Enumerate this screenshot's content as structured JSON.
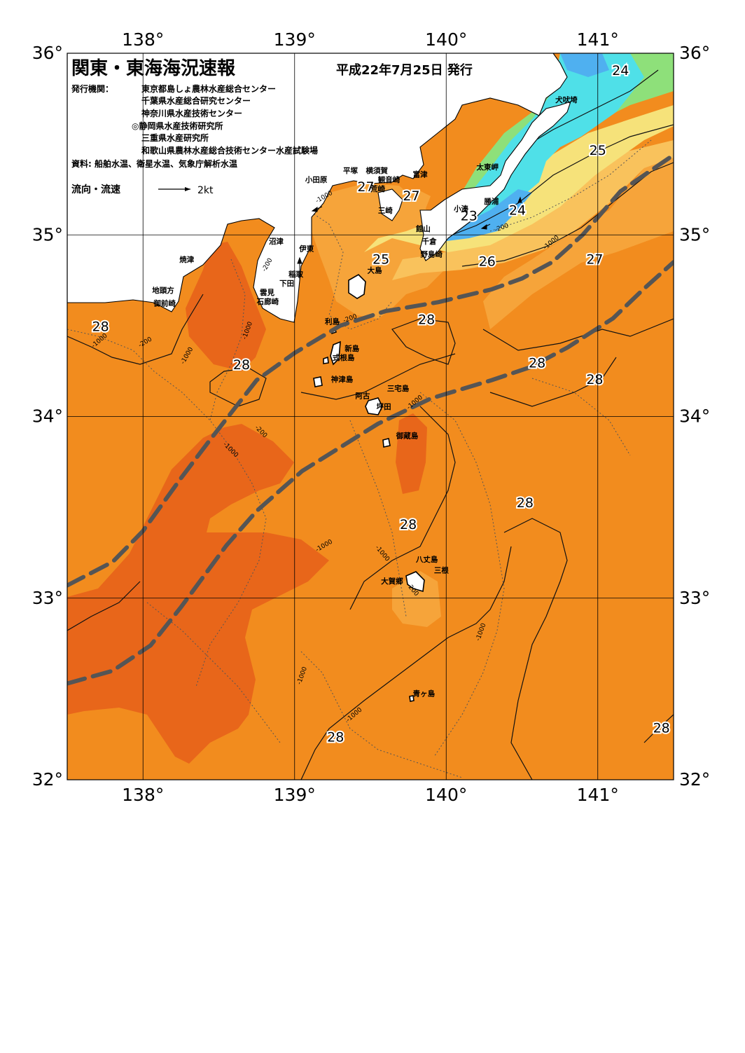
{
  "header": {
    "title": "関東・東海海況速報",
    "date": "平成22年7月25日 発行",
    "issuer_label": "発行機関：",
    "issuers": [
      "東京都島しょ農林水産総合センター",
      "千葉県水産総合研究センター",
      "神奈川県水産技術センター",
      "◎静岡県水産技術研究所",
      "三重県水産研究所",
      "和歌山県農林水産総合技術センター水産試験場"
    ],
    "sources": "資料: 船舶水温、衛星水温、気象庁解析水温",
    "current_label": "流向・流速",
    "current_scale": "2kt"
  },
  "axes": {
    "lon_labels": [
      "138°",
      "139°",
      "140°",
      "141°"
    ],
    "lat_labels": [
      "36°",
      "35°",
      "34°",
      "33°",
      "32°"
    ],
    "lon_range": [
      137.5,
      141.5
    ],
    "lat_range": [
      32,
      36
    ]
  },
  "colors": {
    "sea_28plus": "#e8661a",
    "sea_28": "#f28c1e",
    "sea_27": "#f6a43a",
    "sea_26": "#f9c25c",
    "sea_25": "#f6e27a",
    "sea_24": "#8ee07a",
    "sea_23": "#4fe0e8",
    "sea_22": "#4fb0f0",
    "land": "#ffffff",
    "kuroshio": "#555555"
  },
  "temperature_labels": [
    {
      "text": "24",
      "lon": 141.15,
      "lat": 35.88
    },
    {
      "text": "25",
      "lon": 141.0,
      "lat": 35.44
    },
    {
      "text": "27",
      "lon": 139.47,
      "lat": 35.24
    },
    {
      "text": "27",
      "lon": 139.77,
      "lat": 35.19
    },
    {
      "text": "24",
      "lon": 140.47,
      "lat": 35.11
    },
    {
      "text": "23",
      "lon": 140.15,
      "lat": 35.08
    },
    {
      "text": "25",
      "lon": 139.57,
      "lat": 34.84
    },
    {
      "text": "26",
      "lon": 140.27,
      "lat": 34.83
    },
    {
      "text": "27",
      "lon": 140.98,
      "lat": 34.84
    },
    {
      "text": "28",
      "lon": 137.72,
      "lat": 34.47
    },
    {
      "text": "28",
      "lon": 139.87,
      "lat": 34.51
    },
    {
      "text": "28",
      "lon": 138.65,
      "lat": 34.26
    },
    {
      "text": "28",
      "lon": 140.6,
      "lat": 34.27
    },
    {
      "text": "28",
      "lon": 140.98,
      "lat": 34.18
    },
    {
      "text": "28",
      "lon": 140.52,
      "lat": 33.5
    },
    {
      "text": "28",
      "lon": 139.75,
      "lat": 33.38
    },
    {
      "text": "28",
      "lon": 139.27,
      "lat": 32.21
    },
    {
      "text": "28",
      "lon": 141.42,
      "lat": 32.26
    }
  ],
  "place_labels": [
    {
      "text": "犬吠埼",
      "lon": 140.72,
      "lat": 35.73
    },
    {
      "text": "小田原",
      "lon": 139.07,
      "lat": 35.29
    },
    {
      "text": "平塚",
      "lon": 139.32,
      "lat": 35.34
    },
    {
      "text": "横須賀",
      "lon": 139.47,
      "lat": 35.34
    },
    {
      "text": "観音崎",
      "lon": 139.55,
      "lat": 35.29
    },
    {
      "text": "富津",
      "lon": 139.78,
      "lat": 35.32
    },
    {
      "text": "荒崎",
      "lon": 139.5,
      "lat": 35.24
    },
    {
      "text": "太東岬",
      "lon": 140.2,
      "lat": 35.36
    },
    {
      "text": "勝浦",
      "lon": 140.25,
      "lat": 35.17
    },
    {
      "text": "小湊",
      "lon": 140.05,
      "lat": 35.13
    },
    {
      "text": "三崎",
      "lon": 139.55,
      "lat": 35.12
    },
    {
      "text": "館山",
      "lon": 139.8,
      "lat": 35.02
    },
    {
      "text": "千倉",
      "lon": 139.84,
      "lat": 34.95
    },
    {
      "text": "野島崎",
      "lon": 139.83,
      "lat": 34.88
    },
    {
      "text": "沼津",
      "lon": 138.83,
      "lat": 34.95
    },
    {
      "text": "伊東",
      "lon": 139.03,
      "lat": 34.91
    },
    {
      "text": "焼津",
      "lon": 138.24,
      "lat": 34.85
    },
    {
      "text": "稲取",
      "lon": 138.96,
      "lat": 34.77
    },
    {
      "text": "下田",
      "lon": 138.9,
      "lat": 34.72
    },
    {
      "text": "雲見",
      "lon": 138.77,
      "lat": 34.67
    },
    {
      "text": "石廊崎",
      "lon": 138.75,
      "lat": 34.62
    },
    {
      "text": "地頭方",
      "lon": 138.06,
      "lat": 34.68
    },
    {
      "text": "御前崎",
      "lon": 138.07,
      "lat": 34.61
    },
    {
      "text": "大島",
      "lon": 139.48,
      "lat": 34.79
    },
    {
      "text": "利島",
      "lon": 139.2,
      "lat": 34.51
    },
    {
      "text": "新島",
      "lon": 139.33,
      "lat": 34.36
    },
    {
      "text": "式根島",
      "lon": 139.25,
      "lat": 34.31
    },
    {
      "text": "神津島",
      "lon": 139.24,
      "lat": 34.19
    },
    {
      "text": "三宅島",
      "lon": 139.61,
      "lat": 34.14
    },
    {
      "text": "阿古",
      "lon": 139.4,
      "lat": 34.1
    },
    {
      "text": "坪田",
      "lon": 139.54,
      "lat": 34.04
    },
    {
      "text": "御蔵島",
      "lon": 139.67,
      "lat": 33.88
    },
    {
      "text": "八丈島",
      "lon": 139.8,
      "lat": 33.2
    },
    {
      "text": "三根",
      "lon": 139.92,
      "lat": 33.14
    },
    {
      "text": "大賀郷",
      "lon": 139.57,
      "lat": 33.08
    },
    {
      "text": "青ヶ島",
      "lon": 139.78,
      "lat": 32.46
    }
  ],
  "depth_labels": [
    {
      "text": "-1000",
      "lon": 139.2,
      "lat": 35.2,
      "rot": -30
    },
    {
      "text": "-200",
      "lon": 138.83,
      "lat": 34.83,
      "rot": -60
    },
    {
      "text": "-1000",
      "lon": 138.7,
      "lat": 34.47,
      "rot": -70
    },
    {
      "text": "-1000",
      "lon": 137.72,
      "lat": 34.41,
      "rot": -40
    },
    {
      "text": "-200",
      "lon": 138.02,
      "lat": 34.4,
      "rot": -30
    },
    {
      "text": "-1000",
      "lon": 138.3,
      "lat": 34.33,
      "rot": -60
    },
    {
      "text": "-200",
      "lon": 139.37,
      "lat": 34.53,
      "rot": -20
    },
    {
      "text": "-200",
      "lon": 138.77,
      "lat": 33.91,
      "rot": 45
    },
    {
      "text": "-1000",
      "lon": 138.57,
      "lat": 33.81,
      "rot": 45
    },
    {
      "text": "-200",
      "lon": 140.37,
      "lat": 35.03,
      "rot": -20
    },
    {
      "text": "-1000",
      "lon": 140.7,
      "lat": 34.95,
      "rot": -40
    },
    {
      "text": "-1000",
      "lon": 139.8,
      "lat": 34.07,
      "rot": -40
    },
    {
      "text": "-1000",
      "lon": 139.2,
      "lat": 33.28,
      "rot": -30
    },
    {
      "text": "-1000",
      "lon": 139.57,
      "lat": 33.24,
      "rot": 50
    },
    {
      "text": "-200",
      "lon": 139.77,
      "lat": 33.04,
      "rot": 50
    },
    {
      "text": "-1000",
      "lon": 140.24,
      "lat": 32.81,
      "rot": -70
    },
    {
      "text": "-1000",
      "lon": 139.06,
      "lat": 32.57,
      "rot": -70
    },
    {
      "text": "-1000",
      "lon": 139.4,
      "lat": 32.35,
      "rot": -40
    }
  ],
  "kuroshio_paths": [
    [
      [
        137.5,
        33.07
      ],
      [
        137.8,
        33.2
      ],
      [
        138.0,
        33.37
      ],
      [
        138.25,
        33.66
      ],
      [
        138.45,
        33.88
      ],
      [
        138.75,
        34.2
      ],
      [
        139.0,
        34.35
      ],
      [
        139.3,
        34.5
      ],
      [
        139.6,
        34.58
      ],
      [
        139.95,
        34.63
      ],
      [
        140.3,
        34.7
      ],
      [
        140.5,
        34.76
      ],
      [
        140.7,
        34.85
      ],
      [
        140.9,
        35.0
      ],
      [
        141.15,
        35.24
      ],
      [
        141.5,
        35.44
      ]
    ],
    [
      [
        137.5,
        32.53
      ],
      [
        137.8,
        32.6
      ],
      [
        138.05,
        32.74
      ],
      [
        138.25,
        32.95
      ],
      [
        138.55,
        33.29
      ],
      [
        138.75,
        33.48
      ],
      [
        139.05,
        33.7
      ],
      [
        139.3,
        33.83
      ],
      [
        139.55,
        33.96
      ],
      [
        139.9,
        34.1
      ],
      [
        140.3,
        34.2
      ],
      [
        140.55,
        34.27
      ],
      [
        140.8,
        34.38
      ],
      [
        141.1,
        34.54
      ],
      [
        141.3,
        34.7
      ],
      [
        141.5,
        34.85
      ]
    ]
  ]
}
